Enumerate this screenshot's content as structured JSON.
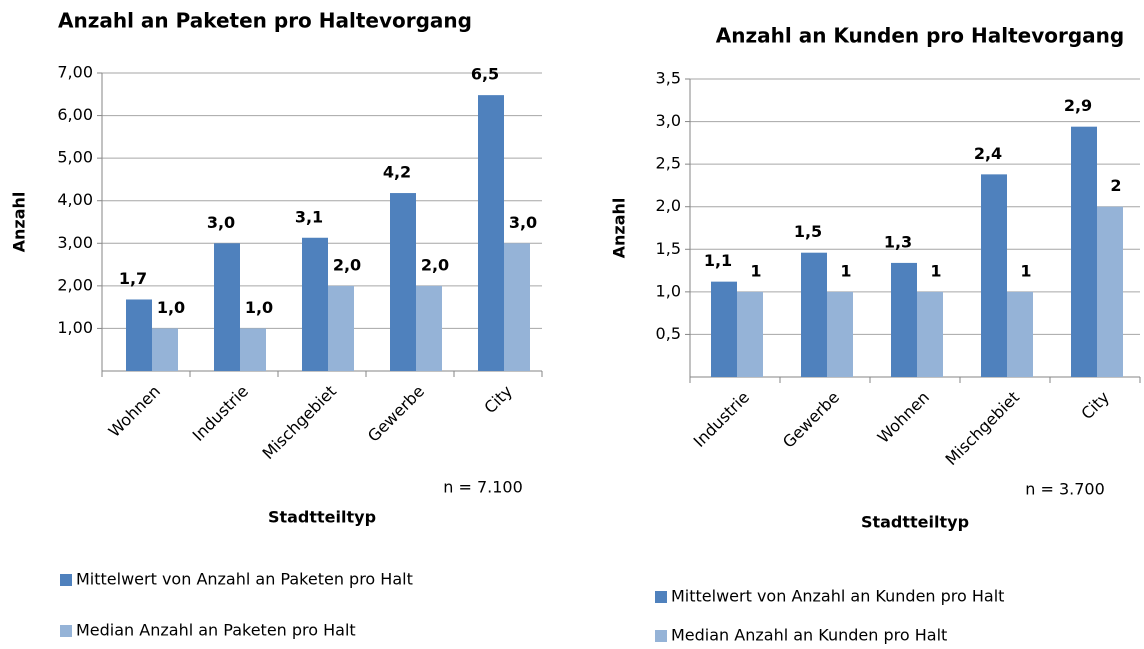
{
  "chart_data": [
    {
      "type": "bar",
      "title": "Anzahl an Paketen pro Haltevorgang",
      "x_label": "Stadtteiltyp",
      "y_label": "Anzahl",
      "annotation": "n = 7.100",
      "categories": [
        "Wohnen",
        "Industrie",
        "Mischgebiet",
        "Gewerbe",
        "City"
      ],
      "series": [
        {
          "name": "Mittelwert von Anzahl an Paketen pro Halt",
          "color": "#4f81bd",
          "values": [
            1.68,
            3.0,
            3.13,
            4.18,
            6.48
          ],
          "value_labels": [
            "1,7",
            "3,0",
            "3,1",
            "4,2",
            "6,5"
          ]
        },
        {
          "name": "Median Anzahl an Paketen pro Halt",
          "color": "#95b3d7",
          "values": [
            1,
            1,
            2,
            2,
            3
          ],
          "value_labels": [
            "1,0",
            "1,0",
            "2,0",
            "2,0",
            "3,0"
          ]
        }
      ],
      "ylim": [
        0,
        7
      ],
      "yticks": [
        {
          "value": 1,
          "label": "1,00"
        },
        {
          "value": 2,
          "label": "2,00"
        },
        {
          "value": 3,
          "label": "3,00"
        },
        {
          "value": 4,
          "label": "4,00"
        },
        {
          "value": 5,
          "label": "5,00"
        },
        {
          "value": 6,
          "label": "6,00"
        },
        {
          "value": 7,
          "label": "7,00"
        }
      ],
      "grid": true
    },
    {
      "type": "bar",
      "title": "Anzahl an Kunden pro Haltevorgang",
      "x_label": "Stadtteiltyp",
      "y_label": "Anzahl",
      "annotation": "n = 3.700",
      "categories": [
        "Industrie",
        "Gewerbe",
        "Wohnen",
        "Mischgebiet",
        "City"
      ],
      "series": [
        {
          "name": "Mittelwert von Anzahl an Kunden pro Halt",
          "color": "#4f81bd",
          "values": [
            1.12,
            1.46,
            1.34,
            2.38,
            2.94
          ],
          "value_labels": [
            "1,1",
            "1,5",
            "1,3",
            "2,4",
            "2,9"
          ]
        },
        {
          "name": "Median Anzahl an Kunden pro Halt",
          "color": "#95b3d7",
          "values": [
            1,
            1,
            1,
            1,
            2
          ]
        }
      ],
      "ylim": [
        0,
        3.5
      ],
      "yticks": [
        {
          "value": 0.5,
          "label": "0,5"
        },
        {
          "value": 1,
          "label": "1,0"
        },
        {
          "value": 1.5,
          "label": "1,5"
        },
        {
          "value": 2,
          "label": "2,0"
        },
        {
          "value": 2.5,
          "label": "2,5"
        },
        {
          "value": 3,
          "label": "3,0"
        },
        {
          "value": 3.5,
          "label": "3,5"
        }
      ],
      "grid": true
    }
  ]
}
